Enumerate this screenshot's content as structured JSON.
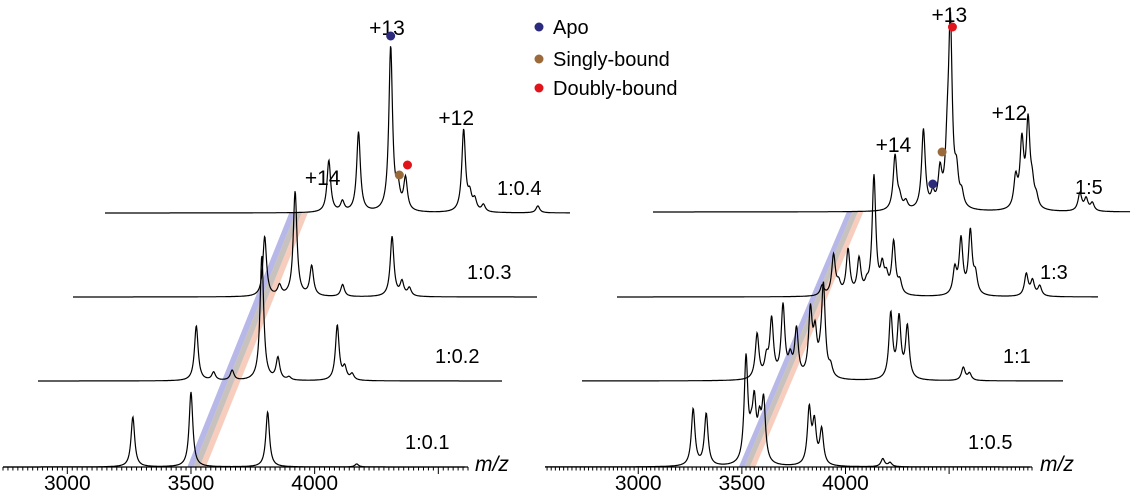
{
  "chart_data": [
    {
      "type": "line",
      "panel": "left",
      "xlabel": "m/z",
      "xlim": [
        2740,
        4620
      ],
      "xticks": [
        3000,
        3500,
        4000
      ],
      "shift_per_trace": -75,
      "charge_labels": [
        {
          "text": "+14",
          "x": 3620,
          "y": 28
        },
        {
          "text": "+13",
          "x": 3880,
          "y": 178
        },
        {
          "text": "+12",
          "x": 4160,
          "y": 88
        }
      ],
      "markers": [
        {
          "series": "Apo",
          "x": 3895,
          "y": 177
        },
        {
          "series": "Singly-bound",
          "x": 3930,
          "y": 38
        },
        {
          "series": "Doubly-bound",
          "x": 3963,
          "y": 48
        }
      ],
      "band": {
        "x_start": 3485,
        "x_end": 3560,
        "bottom_trace": 0,
        "top_trace": 3
      },
      "traces": [
        {
          "label": "1:0.1",
          "peaks": [
            [
              3265,
              50
            ],
            [
              3500,
              75
            ],
            [
              3810,
              55
            ],
            [
              4170,
              3
            ]
          ]
        },
        {
          "label": "1:0.2",
          "peaks": [
            [
              3380,
              55
            ],
            [
              3450,
              8
            ],
            [
              3525,
              10
            ],
            [
              3645,
              125
            ],
            [
              3710,
              22
            ],
            [
              3755,
              3
            ],
            [
              3950,
              55
            ],
            [
              3980,
              12
            ],
            [
              4010,
              6
            ]
          ]
        },
        {
          "label": "1:0.3",
          "peaks": [
            [
              3515,
              60
            ],
            [
              3575,
              10
            ],
            [
              3638,
              105
            ],
            [
              3705,
              30
            ],
            [
              3830,
              12
            ],
            [
              4030,
              60
            ],
            [
              4070,
              14
            ],
            [
              4100,
              8
            ]
          ]
        },
        {
          "label": "1:0.4",
          "peaks": [
            [
              3645,
              52
            ],
            [
              3700,
              10
            ],
            [
              3765,
              80
            ],
            [
              3895,
              165
            ],
            [
              3925,
              20
            ],
            [
              3955,
              32
            ],
            [
              4190,
              82
            ],
            [
              4215,
              15
            ],
            [
              4235,
              11
            ],
            [
              4270,
              7
            ],
            [
              4490,
              7
            ]
          ]
        }
      ]
    },
    {
      "type": "line",
      "panel": "right",
      "xlabel": "m/z",
      "xlim": [
        2550,
        4900
      ],
      "xticks": [
        3000,
        3500,
        4000
      ],
      "shift_per_trace": -75,
      "charge_labels": [
        {
          "text": "+14",
          "x": 3710,
          "y": 60
        },
        {
          "text": "+13",
          "x": 3980,
          "y": 190
        },
        {
          "text": "+12",
          "x": 4270,
          "y": 92
        }
      ],
      "markers": [
        {
          "series": "Apo",
          "x": 3900,
          "y": 28
        },
        {
          "series": "Singly-bound",
          "x": 3945,
          "y": 60
        },
        {
          "series": "Doubly-bound",
          "x": 3995,
          "y": 185
        }
      ],
      "band": {
        "x_start": 3485,
        "x_end": 3565,
        "bottom_trace": 0,
        "top_trace": 3
      },
      "traces": [
        {
          "label": "1:0.5",
          "peaks": [
            [
              3265,
              57
            ],
            [
              3328,
              52
            ],
            [
              3520,
              105
            ],
            [
              3545,
              18
            ],
            [
              3560,
              55
            ],
            [
              3585,
              35
            ],
            [
              3605,
              60
            ],
            [
              3825,
              55
            ],
            [
              3850,
              40
            ],
            [
              3885,
              35
            ],
            [
              4180,
              8
            ],
            [
              4215,
              4
            ]
          ]
        },
        {
          "label": "1:1",
          "peaks": [
            [
              3395,
              45
            ],
            [
              3440,
              18
            ],
            [
              3465,
              58
            ],
            [
              3520,
              72
            ],
            [
              3555,
              18
            ],
            [
              3585,
              48
            ],
            [
              3652,
              65
            ],
            [
              3675,
              40
            ],
            [
              3700,
              10
            ],
            [
              3715,
              90
            ],
            [
              3750,
              10
            ],
            [
              4040,
              65
            ],
            [
              4080,
              60
            ],
            [
              4120,
              52
            ],
            [
              4390,
              13
            ],
            [
              4420,
              7
            ]
          ]
        },
        {
          "label": "1:3",
          "peaks": [
            [
              3540,
              10
            ],
            [
              3595,
              40
            ],
            [
              3620,
              10
            ],
            [
              3665,
              45
            ],
            [
              3718,
              35
            ],
            [
              3755,
              8
            ],
            [
              3790,
              118
            ],
            [
              3830,
              25
            ],
            [
              3850,
              15
            ],
            [
              3885,
              52
            ],
            [
              3915,
              12
            ],
            [
              4180,
              25
            ],
            [
              4210,
              55
            ],
            [
              4255,
              63
            ],
            [
              4280,
              18
            ],
            [
              4525,
              22
            ],
            [
              4555,
              15
            ],
            [
              4590,
              10
            ]
          ]
        },
        {
          "label": "1:5",
          "peaks": [
            [
              3718,
              55
            ],
            [
              3740,
              10
            ],
            [
              3770,
              8
            ],
            [
              3855,
              80
            ],
            [
              3900,
              13
            ],
            [
              3935,
              35
            ],
            [
              3970,
              45
            ],
            [
              3985,
              180
            ],
            [
              4015,
              30
            ],
            [
              4040,
              13
            ],
            [
              4300,
              30
            ],
            [
              4330,
              65
            ],
            [
              4360,
              85
            ],
            [
              4380,
              20
            ],
            [
              4400,
              10
            ],
            [
              4610,
              18
            ],
            [
              4640,
              12
            ],
            [
              4670,
              8
            ]
          ]
        }
      ]
    }
  ],
  "legend": [
    {
      "label": "Apo",
      "color": "#2b2a7c"
    },
    {
      "label": "Singly-bound",
      "color": "#9a6a3a"
    },
    {
      "label": "Doubly-bound",
      "color": "#e0141b"
    }
  ],
  "band_colors": [
    "#7c7ed6",
    "#9a8f8b",
    "#f0a487"
  ]
}
